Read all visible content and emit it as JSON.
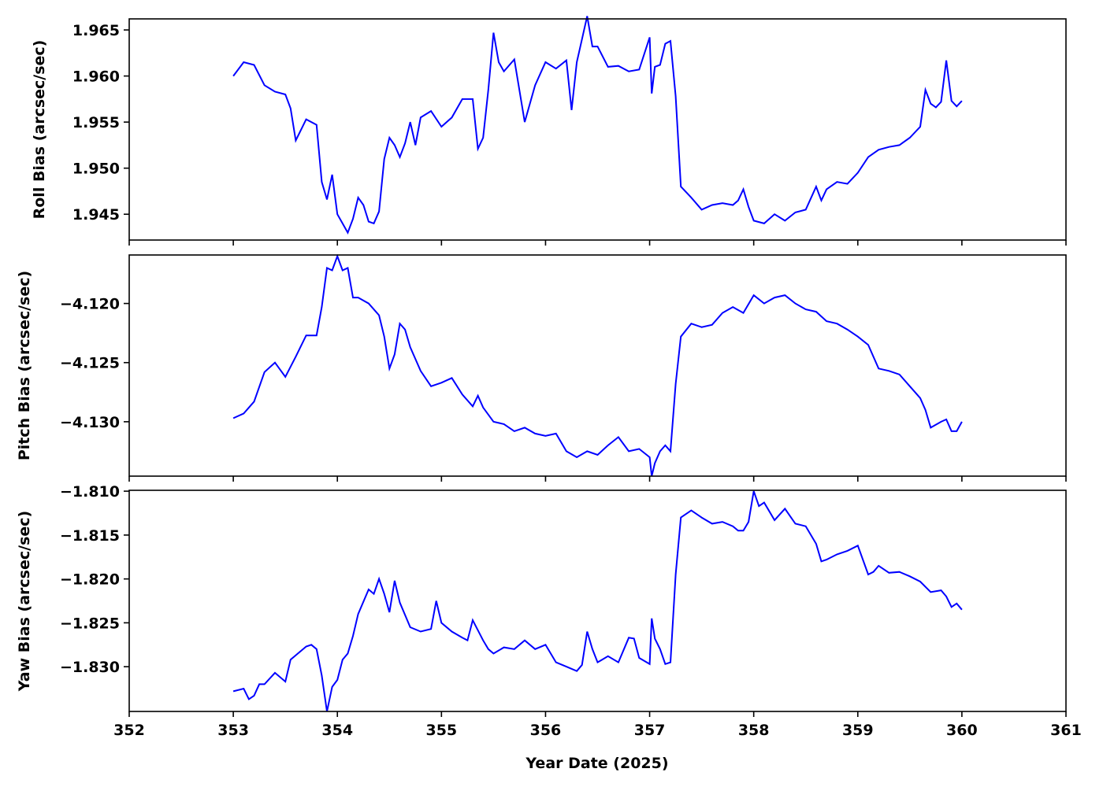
{
  "chart_data": [
    {
      "type": "line",
      "ylabel": "Roll Bias (arcsec/sec)",
      "xlim": [
        352,
        361
      ],
      "ylim": [
        1.9422,
        1.9662
      ],
      "yticks": [
        1.945,
        1.95,
        1.955,
        1.96,
        1.965
      ],
      "ytick_labels": [
        "1.945",
        "1.950",
        "1.955",
        "1.960",
        "1.965"
      ],
      "xticks": [
        352,
        353,
        354,
        355,
        356,
        357,
        358,
        359,
        360,
        361
      ],
      "line_color": "#0000ff",
      "grid": false,
      "series": [
        {
          "x": [
            353.0,
            353.1,
            353.2,
            353.3,
            353.4,
            353.5,
            353.55,
            353.6,
            353.7,
            353.8,
            353.85,
            353.9,
            353.95,
            354.0,
            354.05,
            354.1,
            354.15,
            354.2,
            354.25,
            354.3,
            354.35,
            354.4,
            354.45,
            354.5,
            354.55,
            354.6,
            354.65,
            354.7,
            354.75,
            354.8,
            354.9,
            355.0,
            355.1,
            355.2,
            355.3,
            355.35,
            355.4,
            355.45,
            355.5,
            355.55,
            355.6,
            355.7,
            355.8,
            355.9,
            356.0,
            356.1,
            356.2,
            356.25,
            356.3,
            356.35,
            356.4,
            356.45,
            356.5,
            356.6,
            356.7,
            356.8,
            356.9,
            357.0,
            357.02,
            357.05,
            357.1,
            357.15,
            357.2,
            357.25,
            357.3,
            357.4,
            357.5,
            357.6,
            357.7,
            357.8,
            357.85,
            357.9,
            357.95,
            358.0,
            358.1,
            358.2,
            358.3,
            358.4,
            358.5,
            358.6,
            358.65,
            358.7,
            358.8,
            358.9,
            359.0,
            359.1,
            359.2,
            359.3,
            359.4,
            359.5,
            359.6,
            359.65,
            359.7,
            359.75,
            359.8,
            359.85,
            359.9,
            359.95,
            360.0
          ],
          "y": [
            1.96,
            1.9615,
            1.9612,
            1.959,
            1.9583,
            1.958,
            1.9565,
            1.953,
            1.9553,
            1.9547,
            1.9485,
            1.9466,
            1.9493,
            1.945,
            1.944,
            1.943,
            1.9445,
            1.9468,
            1.946,
            1.9442,
            1.944,
            1.9453,
            1.951,
            1.9533,
            1.9525,
            1.9512,
            1.9527,
            1.955,
            1.9525,
            1.9555,
            1.9562,
            1.9545,
            1.9555,
            1.9575,
            1.9575,
            1.9521,
            1.9533,
            1.9585,
            1.9647,
            1.9615,
            1.9605,
            1.9618,
            1.955,
            1.959,
            1.9615,
            1.9608,
            1.9617,
            1.9563,
            1.9615,
            1.964,
            1.9665,
            1.9632,
            1.9632,
            1.961,
            1.9611,
            1.9605,
            1.9607,
            1.9642,
            1.9581,
            1.961,
            1.9612,
            1.9635,
            1.9638,
            1.9578,
            1.948,
            1.9468,
            1.9455,
            1.946,
            1.9462,
            1.946,
            1.9465,
            1.9477,
            1.9458,
            1.9443,
            1.944,
            1.945,
            1.9443,
            1.9452,
            1.9455,
            1.948,
            1.9465,
            1.9477,
            1.9485,
            1.9483,
            1.9495,
            1.9512,
            1.952,
            1.9523,
            1.9525,
            1.9533,
            1.9545,
            1.9585,
            1.957,
            1.9566,
            1.9572,
            1.9617,
            1.9573,
            1.9567,
            1.9573
          ]
        }
      ]
    },
    {
      "type": "line",
      "ylabel": "Pitch Bias (arcsec/sec)",
      "xlim": [
        352,
        361
      ],
      "ylim": [
        -4.1346,
        -4.1159
      ],
      "yticks": [
        -4.13,
        -4.125,
        -4.12
      ],
      "ytick_labels": [
        "−4.130",
        "−4.125",
        "−4.120"
      ],
      "xticks": [
        352,
        353,
        354,
        355,
        356,
        357,
        358,
        359,
        360,
        361
      ],
      "line_color": "#0000ff",
      "grid": false,
      "series": [
        {
          "x": [
            353.0,
            353.1,
            353.2,
            353.3,
            353.4,
            353.5,
            353.6,
            353.7,
            353.8,
            353.85,
            353.9,
            353.95,
            354.0,
            354.05,
            354.1,
            354.15,
            354.2,
            354.3,
            354.4,
            354.45,
            354.5,
            354.55,
            354.6,
            354.65,
            354.7,
            354.8,
            354.9,
            355.0,
            355.1,
            355.2,
            355.3,
            355.35,
            355.4,
            355.5,
            355.6,
            355.7,
            355.8,
            355.9,
            356.0,
            356.1,
            356.2,
            356.3,
            356.4,
            356.5,
            356.6,
            356.7,
            356.8,
            356.9,
            357.0,
            357.02,
            357.05,
            357.1,
            357.15,
            357.2,
            357.25,
            357.3,
            357.4,
            357.5,
            357.6,
            357.7,
            357.8,
            357.9,
            358.0,
            358.1,
            358.2,
            358.3,
            358.4,
            358.5,
            358.6,
            358.7,
            358.8,
            358.9,
            359.0,
            359.1,
            359.2,
            359.3,
            359.4,
            359.5,
            359.6,
            359.65,
            359.7,
            359.8,
            359.85,
            359.9,
            359.95,
            360.0
          ],
          "y": [
            -4.1297,
            -4.1293,
            -4.1283,
            -4.1258,
            -4.125,
            -4.1262,
            -4.1245,
            -4.1227,
            -4.1227,
            -4.1203,
            -4.117,
            -4.1172,
            -4.116,
            -4.1172,
            -4.117,
            -4.1195,
            -4.1195,
            -4.12,
            -4.121,
            -4.1228,
            -4.1255,
            -4.1243,
            -4.1217,
            -4.1222,
            -4.1237,
            -4.1257,
            -4.127,
            -4.1267,
            -4.1263,
            -4.1277,
            -4.1287,
            -4.1278,
            -4.1288,
            -4.13,
            -4.1302,
            -4.1308,
            -4.1305,
            -4.131,
            -4.1312,
            -4.131,
            -4.1325,
            -4.133,
            -4.1325,
            -4.1328,
            -4.132,
            -4.1313,
            -4.1325,
            -4.1323,
            -4.133,
            -4.1346,
            -4.1335,
            -4.1325,
            -4.132,
            -4.1325,
            -4.1268,
            -4.1228,
            -4.1217,
            -4.122,
            -4.1218,
            -4.1208,
            -4.1203,
            -4.1208,
            -4.1193,
            -4.12,
            -4.1195,
            -4.1193,
            -4.12,
            -4.1205,
            -4.1207,
            -4.1215,
            -4.1217,
            -4.1222,
            -4.1228,
            -4.1235,
            -4.1255,
            -4.1257,
            -4.126,
            -4.127,
            -4.128,
            -4.129,
            -4.1305,
            -4.13,
            -4.1298,
            -4.1308,
            -4.1308,
            -4.13
          ]
        }
      ]
    },
    {
      "type": "line",
      "ylabel": "Yaw Bias (arcsec/sec)",
      "xlim": [
        352,
        361
      ],
      "ylim": [
        -1.8351,
        -1.8099
      ],
      "yticks": [
        -1.83,
        -1.825,
        -1.82,
        -1.815,
        -1.81
      ],
      "ytick_labels": [
        "−1.830",
        "−1.825",
        "−1.820",
        "−1.815",
        "−1.810"
      ],
      "xticks": [
        352,
        353,
        354,
        355,
        356,
        357,
        358,
        359,
        360,
        361
      ],
      "xtick_labels": [
        "352",
        "353",
        "354",
        "355",
        "356",
        "357",
        "358",
        "359",
        "360",
        "361"
      ],
      "xlabel": "Year Date (2025)",
      "line_color": "#0000ff",
      "grid": false,
      "series": [
        {
          "x": [
            353.0,
            353.1,
            353.15,
            353.2,
            353.25,
            353.3,
            353.4,
            353.5,
            353.55,
            353.6,
            353.7,
            353.75,
            353.8,
            353.85,
            353.9,
            353.95,
            354.0,
            354.05,
            354.1,
            354.15,
            354.2,
            354.3,
            354.35,
            354.4,
            354.45,
            354.5,
            354.55,
            354.6,
            354.7,
            354.8,
            354.9,
            354.95,
            355.0,
            355.1,
            355.2,
            355.25,
            355.3,
            355.4,
            355.45,
            355.5,
            355.6,
            355.7,
            355.8,
            355.9,
            356.0,
            356.1,
            356.2,
            356.3,
            356.35,
            356.4,
            356.45,
            356.5,
            356.6,
            356.7,
            356.8,
            356.85,
            356.9,
            357.0,
            357.02,
            357.05,
            357.1,
            357.15,
            357.2,
            357.25,
            357.3,
            357.4,
            357.5,
            357.6,
            357.7,
            357.8,
            357.85,
            357.9,
            357.95,
            358.0,
            358.05,
            358.1,
            358.2,
            358.3,
            358.4,
            358.5,
            358.6,
            358.65,
            358.7,
            358.8,
            358.9,
            359.0,
            359.1,
            359.15,
            359.2,
            359.3,
            359.4,
            359.5,
            359.6,
            359.7,
            359.8,
            359.85,
            359.9,
            359.95,
            360.0
          ],
          "y": [
            -1.8328,
            -1.8325,
            -1.8337,
            -1.8333,
            -1.832,
            -1.832,
            -1.8307,
            -1.8317,
            -1.8292,
            -1.8287,
            -1.8277,
            -1.8275,
            -1.828,
            -1.831,
            -1.8351,
            -1.8323,
            -1.8315,
            -1.8292,
            -1.8285,
            -1.8265,
            -1.824,
            -1.8212,
            -1.8217,
            -1.82,
            -1.8217,
            -1.8238,
            -1.8202,
            -1.8227,
            -1.8255,
            -1.826,
            -1.8257,
            -1.8225,
            -1.825,
            -1.826,
            -1.8267,
            -1.827,
            -1.8247,
            -1.827,
            -1.828,
            -1.8285,
            -1.8278,
            -1.828,
            -1.827,
            -1.828,
            -1.8275,
            -1.8295,
            -1.83,
            -1.8305,
            -1.8298,
            -1.826,
            -1.828,
            -1.8295,
            -1.8288,
            -1.8295,
            -1.8267,
            -1.8268,
            -1.829,
            -1.8297,
            -1.8245,
            -1.8268,
            -1.828,
            -1.8297,
            -1.8295,
            -1.8195,
            -1.813,
            -1.8122,
            -1.813,
            -1.8137,
            -1.8135,
            -1.814,
            -1.8145,
            -1.8145,
            -1.8135,
            -1.81,
            -1.8117,
            -1.8113,
            -1.8133,
            -1.812,
            -1.8137,
            -1.814,
            -1.816,
            -1.818,
            -1.8178,
            -1.8172,
            -1.8168,
            -1.8162,
            -1.8195,
            -1.8192,
            -1.8185,
            -1.8193,
            -1.8192,
            -1.8197,
            -1.8203,
            -1.8215,
            -1.8213,
            -1.822,
            -1.8232,
            -1.8228,
            -1.8235
          ]
        }
      ]
    }
  ]
}
